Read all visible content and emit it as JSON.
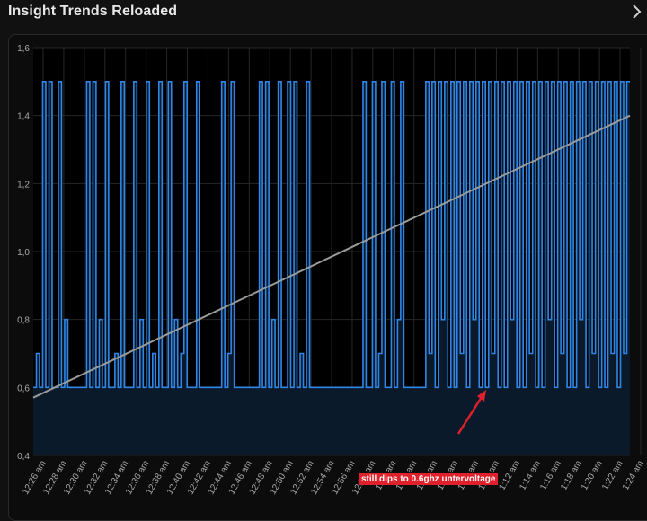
{
  "header": {
    "title": "Insight Trends Reloaded",
    "chevron_icon": "chevron-right-icon"
  },
  "colors": {
    "background": "#111111",
    "plot_background": "#000000",
    "series": "#2f86e6",
    "area_fill": "#0a1a2b",
    "trend": "#9a9a9a",
    "grid": "#262626",
    "axis_text": "#a8a8a8",
    "annotation_bg": "#e0202a",
    "annotation_arrow": "#e0202a"
  },
  "chart_data": {
    "type": "line",
    "title": "",
    "xlabel": "",
    "ylabel": "",
    "ylim": [
      0.4,
      1.6
    ],
    "yticks": [
      "0,4",
      "0,6",
      "0,8",
      "1,0",
      "1,2",
      "1,4",
      "1,6"
    ],
    "xticks": [
      "12:26 am",
      "12:28 am",
      "12:30 am",
      "12:32 am",
      "12:34 am",
      "12:36 am",
      "12:38 am",
      "12:40 am",
      "12:42 am",
      "12:44 am",
      "12:46 am",
      "12:48 am",
      "12:50 am",
      "12:52 am",
      "12:54 am",
      "12:56 am",
      "12:58 am",
      "1:00 am",
      "1:02 am",
      "1:04 am",
      "1:06 am",
      "1:08 am",
      "1:10 am",
      "1:12 am",
      "1:14 am",
      "1:16 am",
      "1:18 am",
      "1:20 am",
      "1:22 am",
      "1:24 am"
    ],
    "grid": true,
    "series": [
      {
        "name": "",
        "description_levels": [
          0.6,
          0.7,
          0.8,
          1.5
        ],
        "values": [
          0.6,
          0.7,
          0.6,
          1.5,
          0.6,
          1.5,
          0.6,
          0.6,
          1.5,
          0.6,
          0.8,
          0.6,
          0.6,
          0.6,
          0.6,
          0.6,
          0.6,
          1.5,
          0.6,
          1.5,
          0.6,
          0.8,
          0.6,
          1.5,
          0.6,
          0.6,
          0.7,
          0.6,
          1.5,
          0.6,
          0.6,
          0.6,
          1.5,
          0.6,
          0.8,
          0.6,
          1.5,
          0.6,
          0.7,
          0.6,
          1.5,
          0.6,
          0.6,
          1.5,
          0.6,
          0.8,
          0.6,
          0.7,
          1.5,
          0.6,
          0.6,
          0.6,
          1.5,
          0.6,
          0.6,
          0.6,
          0.6,
          0.6,
          0.6,
          0.6,
          1.5,
          0.6,
          0.7,
          1.5,
          0.6,
          0.6,
          0.6,
          0.6,
          0.6,
          0.6,
          0.6,
          0.6,
          1.5,
          0.6,
          1.5,
          0.6,
          0.8,
          0.6,
          1.5,
          0.6,
          0.6,
          1.5,
          0.6,
          1.5,
          0.6,
          0.7,
          0.6,
          1.5,
          0.6,
          0.6,
          0.6,
          0.6,
          0.6,
          0.6,
          0.6,
          0.6,
          0.6,
          0.6,
          0.6,
          0.6,
          0.6,
          0.6,
          0.6,
          0.6,
          0.6,
          1.5,
          0.6,
          0.6,
          1.5,
          0.6,
          0.7,
          1.5,
          0.6,
          0.6,
          1.5,
          0.6,
          0.8,
          1.5,
          0.6,
          0.6,
          0.6,
          0.6,
          0.6,
          0.6,
          0.6,
          1.5,
          0.7,
          1.5,
          0.6,
          1.5,
          0.8,
          1.5,
          0.6,
          1.5,
          0.6,
          1.5,
          0.7,
          1.5,
          0.6,
          1.5,
          0.8,
          1.5,
          0.6,
          1.5,
          0.6,
          1.5,
          0.7,
          1.5,
          0.6,
          1.5,
          0.6,
          1.5,
          0.8,
          1.5,
          0.6,
          1.5,
          0.6,
          1.5,
          0.7,
          1.5,
          0.6,
          1.5,
          0.6,
          1.5,
          0.8,
          1.5,
          0.6,
          1.5,
          0.7,
          1.5,
          0.6,
          1.5,
          0.6,
          1.5,
          0.8,
          1.5,
          0.6,
          1.5,
          0.7,
          1.5,
          0.6,
          1.5,
          0.6,
          1.5,
          0.7,
          1.5,
          0.6,
          1.5,
          0.7,
          1.5
        ]
      },
      {
        "name": "",
        "kind": "trend",
        "start": 0.57,
        "end": 1.4
      }
    ],
    "annotation": {
      "text": "still dips to 0.6ghz untervoltage"
    }
  }
}
